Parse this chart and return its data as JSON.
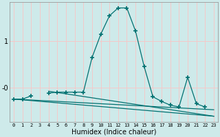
{
  "xlabel": "Humidex (Indice chaleur)",
  "bg_color": "#ceeaea",
  "grid_color": "#f5c8c8",
  "line_color": "#007070",
  "x": [
    0,
    1,
    2,
    3,
    4,
    5,
    6,
    7,
    8,
    9,
    10,
    11,
    12,
    13,
    14,
    15,
    16,
    17,
    18,
    19,
    20,
    21,
    22,
    23
  ],
  "series1_y": [
    -0.25,
    -0.25,
    -0.18,
    null,
    -0.12,
    -0.1,
    -0.1,
    -0.1,
    -0.1,
    0.65,
    1.15,
    1.55,
    1.72,
    1.72,
    1.22,
    0.45,
    -0.2,
    -0.3,
    -0.38,
    -0.42,
    0.22,
    -0.35,
    -0.42,
    null
  ],
  "trend1_x": [
    0,
    23
  ],
  "trend1_y": [
    -0.25,
    -0.48
  ],
  "trend2_x": [
    0,
    23
  ],
  "trend2_y": [
    -0.25,
    -0.62
  ],
  "trend3_x": [
    4,
    23
  ],
  "trend3_y": [
    -0.08,
    -0.62
  ],
  "ylim": [
    -0.75,
    1.85
  ],
  "xlim": [
    -0.5,
    23.5
  ],
  "yticks": [
    0.0,
    1.0
  ],
  "ytick_labels": [
    "-0",
    "1"
  ],
  "xtick_labels": [
    "0",
    "1",
    "2",
    "3",
    "4",
    "5",
    "6",
    "7",
    "8",
    "9",
    "10",
    "11",
    "12",
    "13",
    "14",
    "15",
    "16",
    "17",
    "18",
    "19",
    "20",
    "21",
    "22",
    "23"
  ],
  "marker": "+",
  "markersize": 4,
  "markeredgewidth": 1.2,
  "linewidth": 0.9,
  "xlabel_fontsize": 7,
  "ytick_fontsize": 7,
  "xtick_fontsize": 5
}
